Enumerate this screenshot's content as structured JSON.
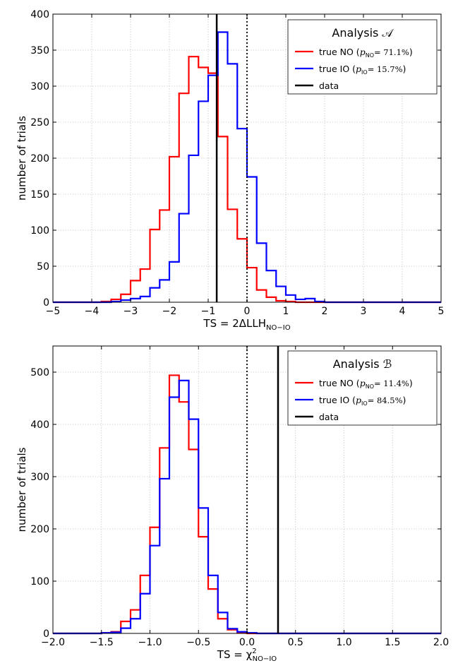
{
  "chart_data": [
    {
      "type": "histogram",
      "legend_title": "Analysis 𝒜",
      "legend_placement": "top-right",
      "xlabel_main": "TS = 2ΔLLH",
      "xlabel_sub": "NO−IO",
      "ylabel": "number of trials",
      "xlim": [
        -5,
        5
      ],
      "ylim": [
        0,
        400
      ],
      "xticks": [
        -5,
        -4,
        -3,
        -2,
        -1,
        0,
        1,
        2,
        3,
        4,
        5
      ],
      "xtick_labels": [
        "−5",
        "−4",
        "−3",
        "−2",
        "−1",
        "0",
        "1",
        "2",
        "3",
        "4",
        "5"
      ],
      "yticks": [
        0,
        50,
        100,
        150,
        200,
        250,
        300,
        350,
        400
      ],
      "ytick_labels": [
        "0",
        "50",
        "100",
        "150",
        "200",
        "250",
        "300",
        "350",
        "400"
      ],
      "grid": true,
      "bin_edges": [
        -5,
        -4.75,
        -4.5,
        -4.25,
        -4,
        -3.75,
        -3.5,
        -3.25,
        -3,
        -2.75,
        -2.5,
        -2.25,
        -2,
        -1.75,
        -1.5,
        -1.25,
        -1,
        -0.75,
        -0.5,
        -0.25,
        0,
        0.25,
        0.5,
        0.75,
        1,
        1.25,
        1.5,
        1.75,
        2,
        2.25,
        2.5,
        2.75,
        3,
        3.25,
        3.5,
        3.75,
        4,
        4.25,
        4.5,
        4.75,
        5
      ],
      "series": [
        {
          "name": "true NO",
          "name_p": "p",
          "name_p_sub": "NO",
          "name_p_value": "= 71.1%",
          "color": "#ff0000",
          "values": [
            0,
            0,
            0,
            0,
            0,
            1,
            4,
            11,
            30,
            46,
            101,
            128,
            202,
            290,
            341,
            326,
            318,
            230,
            129,
            88,
            48,
            17,
            7,
            2,
            1,
            0,
            0,
            0,
            0,
            0,
            0,
            0,
            0,
            0,
            0,
            0,
            0,
            0,
            0,
            0
          ]
        },
        {
          "name": "true IO",
          "name_p": "p",
          "name_p_sub": "IO",
          "name_p_value": "= 15.7%",
          "color": "#0000ff",
          "values": [
            0,
            0,
            0,
            0,
            0,
            0,
            1,
            3,
            5,
            8,
            20,
            31,
            56,
            123,
            204,
            279,
            315,
            375,
            331,
            241,
            174,
            82,
            44,
            22,
            10,
            4,
            5,
            1,
            0,
            0,
            0,
            0,
            0,
            0,
            0,
            0,
            0,
            0,
            0,
            0
          ]
        },
        {
          "name": "data",
          "type": "vline",
          "x": -0.78,
          "color": "#000000"
        }
      ],
      "reference_line": {
        "x": 0,
        "style": "dotted",
        "color": "#000000"
      }
    },
    {
      "type": "histogram",
      "legend_title": "Analysis ℬ",
      "legend_placement": "top-right",
      "xlabel_main": "TS = χ",
      "xlabel_sup": "2",
      "xlabel_sub": "NO−IO",
      "ylabel": "number of trials",
      "xlim": [
        -2,
        2
      ],
      "ylim": [
        0,
        550
      ],
      "xticks": [
        -2,
        -1.5,
        -1,
        -0.5,
        0,
        0.5,
        1,
        1.5,
        2
      ],
      "xtick_labels": [
        "−2.0",
        "−1.5",
        "−1.0",
        "−0.5",
        "0.0",
        "0.5",
        "1.0",
        "1.5",
        "2.0"
      ],
      "yticks": [
        0,
        100,
        200,
        300,
        400,
        500
      ],
      "ytick_labels": [
        "0",
        "100",
        "200",
        "300",
        "400",
        "500"
      ],
      "grid": true,
      "bin_edges": [
        -2,
        -1.9,
        -1.8,
        -1.7,
        -1.6,
        -1.5,
        -1.4,
        -1.3,
        -1.2,
        -1.1,
        -1.0,
        -0.9,
        -0.8,
        -0.7,
        -0.6,
        -0.5,
        -0.4,
        -0.3,
        -0.2,
        -0.1,
        0,
        0.1,
        0.2,
        0.3,
        0.4,
        0.5,
        0.6,
        0.7,
        0.8,
        0.9,
        1.0,
        1.1,
        1.2,
        1.3,
        1.4,
        1.5,
        1.6,
        1.7,
        1.8,
        1.9,
        2.0
      ],
      "series": [
        {
          "name": "true NO",
          "name_p": "p",
          "name_p_sub": "NO",
          "name_p_value": "= 11.4%",
          "color": "#ff0000",
          "values": [
            0,
            0,
            0,
            0,
            0,
            1,
            3,
            23,
            45,
            111,
            203,
            355,
            494,
            443,
            352,
            185,
            85,
            28,
            7,
            2,
            0,
            0,
            0,
            0,
            0,
            0,
            0,
            0,
            0,
            0,
            0,
            0,
            0,
            0,
            0,
            0,
            0,
            0,
            0,
            0
          ]
        },
        {
          "name": "true IO",
          "name_p": "p",
          "name_p_sub": "IO",
          "name_p_value": "= 84.5%",
          "color": "#0000ff",
          "values": [
            0,
            0,
            0,
            0,
            0,
            1,
            2,
            10,
            28,
            76,
            168,
            296,
            452,
            484,
            410,
            240,
            111,
            40,
            9,
            3,
            1,
            0,
            0,
            0,
            0,
            0,
            0,
            0,
            0,
            0,
            0,
            0,
            0,
            0,
            0,
            0,
            0,
            0,
            0,
            0
          ]
        },
        {
          "name": "data",
          "type": "vline",
          "x": 0.32,
          "color": "#000000"
        }
      ],
      "reference_line": {
        "x": 0,
        "style": "dotted",
        "color": "#000000"
      }
    }
  ]
}
